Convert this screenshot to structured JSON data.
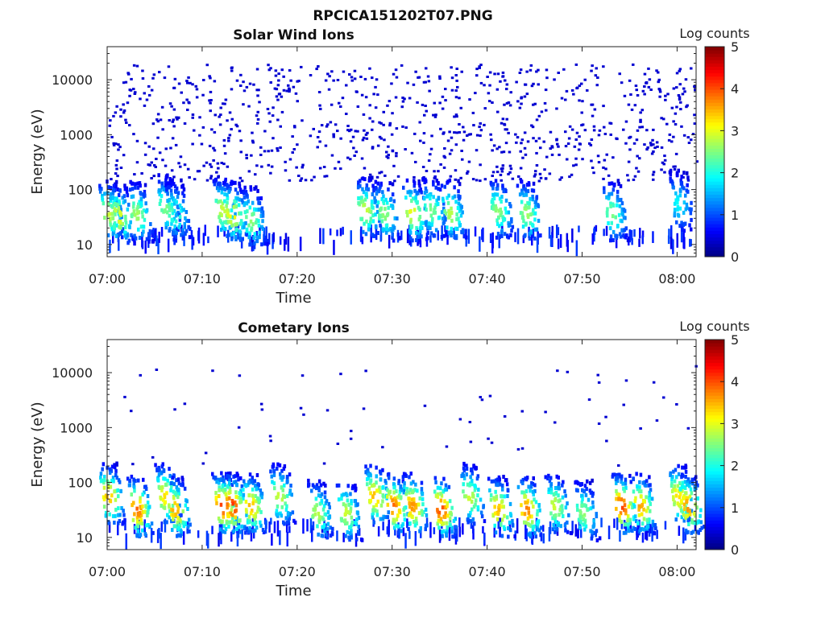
{
  "figure": {
    "title": "RPCICA151202T07.PNG"
  },
  "colorbar": {
    "label": "Log counts",
    "ticks": [
      "0",
      "1",
      "2",
      "3",
      "4",
      "5"
    ],
    "min": 0,
    "max": 5,
    "colormap": "jet"
  },
  "chart_data": [
    {
      "type": "heatmap",
      "title": "Solar Wind Ions",
      "xlabel": "Time",
      "ylabel": "Energy (eV)",
      "x_ticks": [
        "07:00",
        "07:10",
        "07:20",
        "07:30",
        "07:40",
        "07:50",
        "08:00"
      ],
      "y_ticks": [
        "10",
        "100",
        "1000",
        "10000"
      ],
      "y_scale": "log",
      "xlim": [
        "07:00",
        "08:02"
      ],
      "ylim": [
        6,
        40000
      ],
      "value": "log counts",
      "blobs": [
        {
          "t": "07:00",
          "e": 40,
          "v": 2.6
        },
        {
          "t": "07:01",
          "e": 35,
          "v": 2.8
        },
        {
          "t": "07:03",
          "e": 38,
          "v": 2.4
        },
        {
          "t": "07:06",
          "e": 50,
          "v": 2.2
        },
        {
          "t": "07:07",
          "e": 40,
          "v": 2.0
        },
        {
          "t": "07:12",
          "e": 45,
          "v": 2.6
        },
        {
          "t": "07:13",
          "e": 38,
          "v": 2.9
        },
        {
          "t": "07:15",
          "e": 30,
          "v": 2.3
        },
        {
          "t": "07:27",
          "e": 45,
          "v": 2.6
        },
        {
          "t": "07:29",
          "e": 40,
          "v": 2.3
        },
        {
          "t": "07:32",
          "e": 40,
          "v": 2.8
        },
        {
          "t": "07:34",
          "e": 45,
          "v": 2.2
        },
        {
          "t": "07:36",
          "e": 40,
          "v": 2.5
        },
        {
          "t": "07:41",
          "e": 45,
          "v": 2.3
        },
        {
          "t": "07:44",
          "e": 40,
          "v": 2.4
        },
        {
          "t": "07:53",
          "e": 40,
          "v": 2.2
        },
        {
          "t": "08:00",
          "e": 60,
          "v": 1.6
        }
      ],
      "noise": {
        "emin": 150,
        "emax": 20000,
        "v": 0.4
      }
    },
    {
      "type": "heatmap",
      "title": "Cometary Ions",
      "xlabel": "Time",
      "ylabel": "Energy (eV)",
      "x_ticks": [
        "07:00",
        "07:10",
        "07:20",
        "07:30",
        "07:40",
        "07:50",
        "08:00"
      ],
      "y_ticks": [
        "10",
        "100",
        "1000",
        "10000"
      ],
      "y_scale": "log",
      "xlim": [
        "07:00",
        "08:02"
      ],
      "ylim": [
        6,
        40000
      ],
      "value": "log counts",
      "blobs": [
        {
          "t": "07:00",
          "e": 60,
          "v": 3.2
        },
        {
          "t": "07:03",
          "e": 35,
          "v": 3.6
        },
        {
          "t": "07:06",
          "e": 60,
          "v": 3.0
        },
        {
          "t": "07:07",
          "e": 35,
          "v": 3.3
        },
        {
          "t": "07:12",
          "e": 40,
          "v": 3.8
        },
        {
          "t": "07:13",
          "e": 40,
          "v": 3.9
        },
        {
          "t": "07:15",
          "e": 40,
          "v": 3.2
        },
        {
          "t": "07:18",
          "e": 60,
          "v": 2.6
        },
        {
          "t": "07:22",
          "e": 30,
          "v": 2.5
        },
        {
          "t": "07:25",
          "e": 30,
          "v": 2.6
        },
        {
          "t": "07:28",
          "e": 60,
          "v": 3.2
        },
        {
          "t": "07:30",
          "e": 40,
          "v": 3.6
        },
        {
          "t": "07:32",
          "e": 40,
          "v": 3.4
        },
        {
          "t": "07:35",
          "e": 35,
          "v": 3.8
        },
        {
          "t": "07:38",
          "e": 60,
          "v": 2.6
        },
        {
          "t": "07:41",
          "e": 35,
          "v": 3.2
        },
        {
          "t": "07:44",
          "e": 35,
          "v": 3.5
        },
        {
          "t": "07:47",
          "e": 40,
          "v": 2.6
        },
        {
          "t": "07:50",
          "e": 30,
          "v": 2.3
        },
        {
          "t": "07:54",
          "e": 40,
          "v": 3.8
        },
        {
          "t": "07:56",
          "e": 40,
          "v": 3.3
        },
        {
          "t": "08:00",
          "e": 60,
          "v": 3.0
        },
        {
          "t": "08:01",
          "e": 40,
          "v": 3.4
        }
      ],
      "noise": {
        "emin": 200,
        "emax": 15000,
        "v": 0.4
      }
    }
  ]
}
